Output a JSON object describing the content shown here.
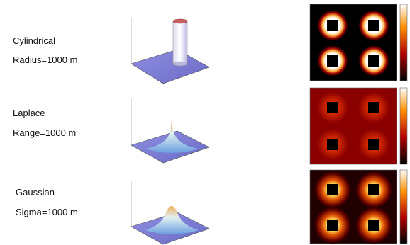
{
  "rows": [
    {
      "kernel": "Cylindrical",
      "parameter": "Radius=1000 m"
    },
    {
      "kernel": "Laplace",
      "parameter": "Range=1000 m"
    },
    {
      "kernel": "Gaussian",
      "parameter": "Sigma=1000 m"
    }
  ]
}
